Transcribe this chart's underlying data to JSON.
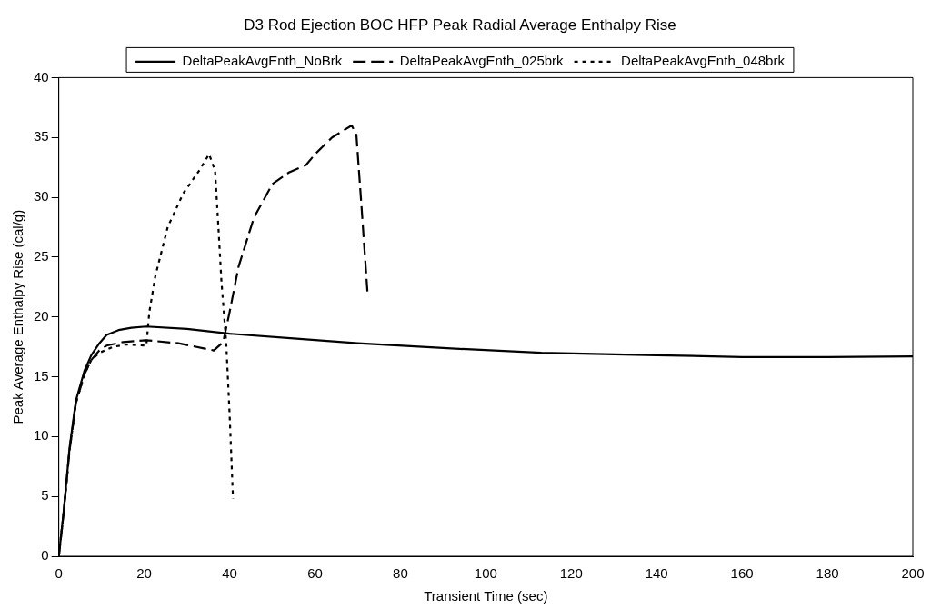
{
  "chart_data": {
    "type": "line",
    "title": "D3 Rod Ejection BOC HFP Peak Radial Average Enthalpy Rise",
    "xlabel": "Transient Time (sec)",
    "ylabel": "Peak Average Enthalpy Rise (cal/g)",
    "xlim": [
      0,
      200
    ],
    "xticks": [
      0,
      20,
      40,
      60,
      80,
      100,
      120,
      140,
      160,
      180,
      200
    ],
    "ylim": [
      0,
      40
    ],
    "yticks": [
      0,
      5,
      10,
      15,
      20,
      25,
      30,
      35,
      40
    ],
    "grid": false,
    "legend": "top",
    "marker": "none",
    "series": [
      {
        "name": "DeltaPeakAvgEnth_NoBrk",
        "color": "#000000",
        "line_style": "solid",
        "x": [
          0,
          1.1,
          2.5,
          4,
          6,
          7.6,
          9.5,
          11.2,
          14,
          17,
          20.5,
          30,
          40,
          55,
          70,
          90,
          113,
          140,
          160,
          180,
          200
        ],
        "values": [
          0,
          3.6,
          9,
          13,
          15.5,
          16.8,
          17.8,
          18.5,
          18.9,
          19.1,
          19.2,
          19.0,
          18.6,
          18.2,
          17.8,
          17.4,
          17.0,
          16.8,
          16.65,
          16.65,
          16.7
        ]
      },
      {
        "name": "DeltaPeakAvgEnth_025brk",
        "color": "#000000",
        "line_style": "dashed",
        "x": [
          0,
          1.1,
          2.5,
          4,
          6,
          7.6,
          9.5,
          11.2,
          15,
          20.5,
          28,
          36.3,
          38.5,
          40,
          42.1,
          45.7,
          50,
          54,
          57.9,
          60,
          64,
          68.6,
          69.7,
          70.8,
          72.3
        ],
        "values": [
          0,
          3.5,
          8.8,
          12.8,
          15.2,
          16.4,
          17.2,
          17.6,
          17.9,
          18.05,
          17.8,
          17.2,
          17.9,
          20.4,
          24.2,
          28.3,
          31.1,
          32.1,
          32.7,
          33.6,
          35.0,
          36.0,
          35.2,
          29.7,
          22.0
        ]
      },
      {
        "name": "DeltaPeakAvgEnth_048brk",
        "color": "#000000",
        "line_style": "dotted",
        "x": [
          0,
          1.1,
          2.5,
          4,
          6,
          7.6,
          9.5,
          12.7,
          16,
          20.5,
          21.2,
          22.6,
          25.5,
          29.1,
          33,
          35.2,
          36.6,
          37.3,
          38.1,
          39.2,
          40,
          40.8
        ],
        "values": [
          0,
          3.5,
          8.8,
          12.8,
          15.2,
          16.4,
          17.0,
          17.5,
          17.7,
          17.6,
          20.4,
          23.4,
          27.5,
          30.3,
          32.3,
          33.6,
          32.2,
          28.0,
          22.9,
          17.9,
          11.9,
          4.8
        ]
      }
    ]
  }
}
